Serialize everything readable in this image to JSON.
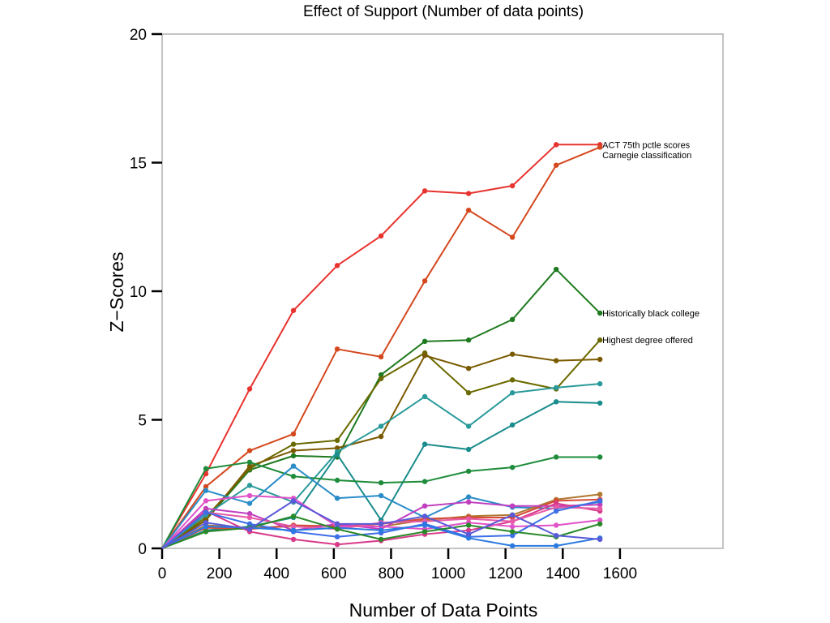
{
  "chart_data": {
    "type": "line",
    "title": "Effect of Support (Number of data points)",
    "xlabel": "Number of Data Points",
    "ylabel": "Z−Scores",
    "xlim": [
      0,
      1960
    ],
    "ylim": [
      0,
      20
    ],
    "xticks": [
      0,
      200,
      400,
      600,
      800,
      1000,
      1200,
      1400,
      1600
    ],
    "yticks": [
      0,
      5,
      10,
      15,
      20
    ],
    "grid": false,
    "x": [
      0,
      153,
      306,
      459,
      612,
      765,
      918,
      1071,
      1224,
      1377,
      1530
    ],
    "series": [
      {
        "color": "#e8322e",
        "values": [
          0,
          2.9,
          6.2,
          9.25,
          11.0,
          12.15,
          13.9,
          13.8,
          14.1,
          15.7,
          15.7
        ]
      },
      {
        "color": "#d4481e",
        "values": [
          0,
          2.4,
          3.8,
          4.45,
          7.75,
          7.45,
          10.4,
          13.15,
          12.1,
          14.9,
          15.6
        ]
      },
      {
        "color": "#1e7a1e",
        "values": [
          0,
          1.1,
          3.05,
          3.6,
          3.55,
          6.75,
          8.05,
          8.1,
          8.9,
          10.85,
          9.15
        ]
      },
      {
        "color": "#6b6a00",
        "values": [
          0,
          1.2,
          3.1,
          4.05,
          4.2,
          6.6,
          7.6,
          6.05,
          6.55,
          6.2,
          8.1
        ]
      },
      {
        "color": "#7a5a00",
        "values": [
          0,
          1.1,
          3.2,
          3.8,
          3.9,
          4.35,
          7.5,
          7.0,
          7.55,
          7.3,
          7.35
        ]
      },
      {
        "color": "#2a9a9a",
        "values": [
          0,
          1.3,
          2.45,
          1.8,
          3.75,
          4.75,
          5.9,
          4.75,
          6.05,
          6.25,
          6.4
        ]
      },
      {
        "color": "#1a8c8c",
        "values": [
          0,
          0.7,
          0.85,
          1.2,
          3.65,
          1.1,
          4.05,
          3.85,
          4.8,
          5.7,
          5.65
        ]
      },
      {
        "color": "#1e8c3a",
        "values": [
          0,
          3.1,
          3.35,
          2.8,
          2.65,
          2.55,
          2.6,
          3.0,
          3.15,
          3.55,
          3.55
        ]
      },
      {
        "color": "#2a8cc8",
        "values": [
          0,
          2.25,
          1.75,
          3.2,
          1.95,
          2.05,
          1.2,
          2.0,
          1.6,
          1.55,
          1.8
        ]
      },
      {
        "color": "#b07830",
        "values": [
          0,
          0.9,
          0.8,
          0.85,
          0.9,
          0.85,
          1.1,
          1.25,
          1.3,
          1.9,
          2.1
        ]
      },
      {
        "color": "#d64a3a",
        "values": [
          0,
          0.8,
          0.75,
          0.9,
          0.85,
          0.95,
          1.15,
          1.2,
          1.2,
          1.85,
          1.9
        ]
      },
      {
        "color": "#c03ec0",
        "values": [
          0,
          1.55,
          1.35,
          0.7,
          0.95,
          0.75,
          1.65,
          1.8,
          1.65,
          1.65,
          1.7
        ]
      },
      {
        "color": "#d83a8a",
        "values": [
          0,
          1.45,
          0.65,
          0.35,
          0.15,
          0.3,
          0.55,
          0.7,
          1.05,
          1.75,
          1.45
        ]
      },
      {
        "color": "#e052c8",
        "values": [
          0,
          1.85,
          2.05,
          1.95,
          0.85,
          0.85,
          0.75,
          1.0,
          0.85,
          0.9,
          1.1
        ]
      },
      {
        "color": "#e65aa8",
        "values": [
          0,
          1.4,
          1.2,
          0.85,
          0.75,
          1.0,
          1.05,
          1.15,
          1.05,
          1.6,
          1.55
        ]
      },
      {
        "color": "#3c6ee8",
        "values": [
          0,
          1.4,
          0.95,
          0.65,
          0.45,
          0.6,
          0.95,
          0.45,
          0.5,
          1.45,
          1.85
        ]
      },
      {
        "color": "#2a7ae0",
        "values": [
          0,
          0.85,
          0.8,
          0.7,
          0.8,
          0.7,
          0.9,
          0.4,
          0.1,
          0.1,
          0.4
        ]
      },
      {
        "color": "#2a8a2a",
        "values": [
          0,
          0.65,
          0.8,
          1.25,
          0.75,
          0.35,
          0.65,
          0.9,
          0.65,
          0.45,
          0.95
        ]
      },
      {
        "color": "#5a5ad8",
        "values": [
          0,
          1.0,
          0.75,
          1.85,
          0.95,
          0.95,
          1.25,
          0.55,
          1.3,
          0.5,
          0.35
        ]
      }
    ],
    "annotations": [
      {
        "text": "ACT 75th pctle scores",
        "x": 1530,
        "y": 15.7
      },
      {
        "text": "Carnegie classification",
        "x": 1530,
        "y": 15.3
      },
      {
        "text": "Historically black college",
        "x": 1530,
        "y": 9.15
      },
      {
        "text": "Highest degree offered",
        "x": 1530,
        "y": 8.1
      }
    ]
  }
}
